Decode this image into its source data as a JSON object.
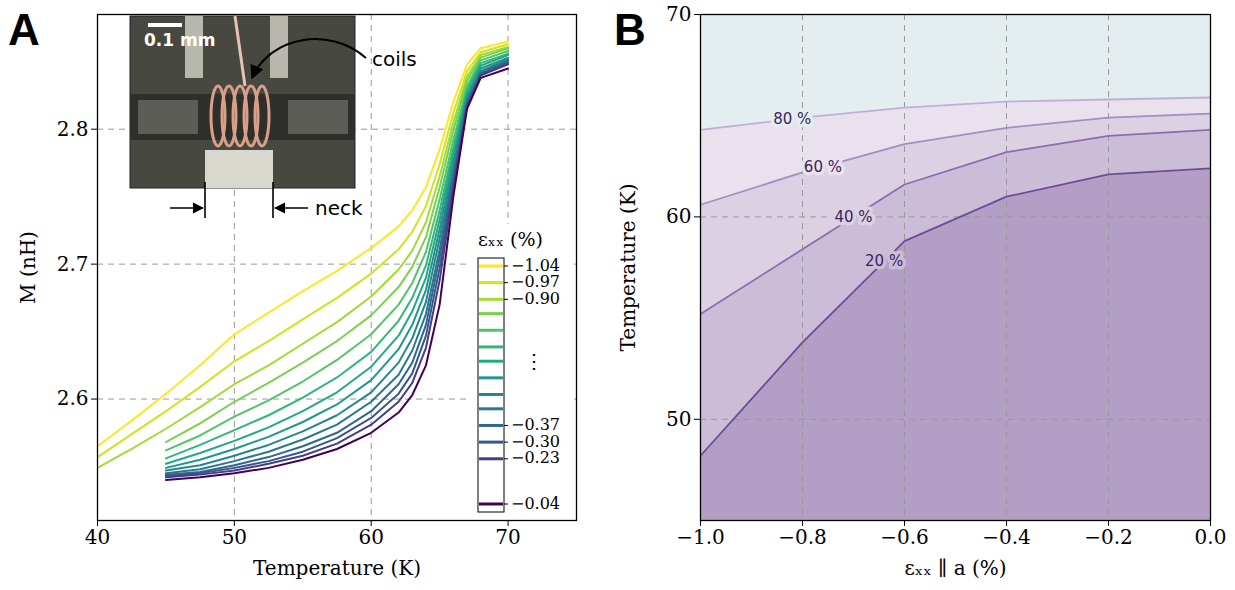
{
  "chart_data": [
    {
      "type": "line",
      "panel": "A",
      "x_label": "Temperature (K)",
      "y_label": "M (nH)",
      "xlim": [
        40,
        75
      ],
      "xticks": [
        40,
        50,
        60,
        70
      ],
      "ylim": [
        2.51,
        2.885
      ],
      "yticks": [
        2.6,
        2.7,
        2.8
      ],
      "grid": true,
      "x": [
        40,
        42.5,
        45,
        47.5,
        50,
        52.5,
        55,
        57.5,
        60,
        62,
        63,
        64,
        65,
        66,
        67,
        68,
        70
      ],
      "series": [
        {
          "strain": -1.04,
          "values": [
            2.565,
            2.584,
            2.604,
            2.625,
            2.648,
            2.664,
            2.68,
            2.695,
            2.712,
            2.728,
            2.74,
            2.757,
            2.785,
            2.82,
            2.848,
            2.86,
            2.865
          ]
        },
        {
          "strain": -0.97,
          "values": [
            2.557,
            2.574,
            2.591,
            2.609,
            2.628,
            2.643,
            2.659,
            2.675,
            2.693,
            2.711,
            2.724,
            2.743,
            2.774,
            2.812,
            2.843,
            2.857,
            2.863
          ]
        },
        {
          "strain": -0.9,
          "values": [
            2.549,
            2.563,
            2.578,
            2.594,
            2.611,
            2.625,
            2.641,
            2.657,
            2.676,
            2.696,
            2.71,
            2.731,
            2.765,
            2.805,
            2.839,
            2.855,
            2.861
          ]
        },
        {
          "strain": -0.84,
          "values": [
            null,
            null,
            2.568,
            2.582,
            2.598,
            2.612,
            2.627,
            2.643,
            2.662,
            2.683,
            2.698,
            2.72,
            2.757,
            2.799,
            2.836,
            2.853,
            2.86
          ]
        },
        {
          "strain": -0.77,
          "values": [
            null,
            null,
            2.562,
            2.573,
            2.587,
            2.599,
            2.613,
            2.629,
            2.648,
            2.67,
            2.686,
            2.709,
            2.748,
            2.792,
            2.832,
            2.851,
            2.858
          ]
        },
        {
          "strain": -0.7,
          "values": [
            null,
            null,
            2.556,
            2.566,
            2.577,
            2.588,
            2.601,
            2.616,
            2.635,
            2.658,
            2.675,
            2.699,
            2.74,
            2.786,
            2.829,
            2.849,
            2.856
          ]
        },
        {
          "strain": -0.64,
          "values": [
            null,
            null,
            2.552,
            2.56,
            2.569,
            2.579,
            2.591,
            2.605,
            2.624,
            2.647,
            2.665,
            2.69,
            2.733,
            2.781,
            2.826,
            2.847,
            2.855
          ]
        },
        {
          "strain": -0.57,
          "values": [
            null,
            null,
            2.549,
            2.555,
            2.563,
            2.572,
            2.583,
            2.596,
            2.614,
            2.637,
            2.655,
            2.681,
            2.726,
            2.776,
            2.824,
            2.845,
            2.853
          ]
        },
        {
          "strain": -0.5,
          "values": [
            null,
            null,
            2.547,
            2.551,
            2.558,
            2.566,
            2.576,
            2.588,
            2.605,
            2.627,
            2.645,
            2.672,
            2.719,
            2.771,
            2.822,
            2.843,
            2.852
          ]
        },
        {
          "strain": -0.44,
          "values": [
            null,
            null,
            2.545,
            2.548,
            2.554,
            2.561,
            2.57,
            2.581,
            2.598,
            2.618,
            2.636,
            2.663,
            2.711,
            2.767,
            2.82,
            2.842,
            2.851
          ]
        },
        {
          "strain": -0.37,
          "values": [
            null,
            null,
            2.544,
            2.546,
            2.551,
            2.557,
            2.565,
            2.575,
            2.591,
            2.611,
            2.627,
            2.655,
            2.705,
            2.763,
            2.819,
            2.841,
            2.85
          ]
        },
        {
          "strain": -0.3,
          "values": [
            null,
            null,
            2.543,
            2.545,
            2.549,
            2.554,
            2.561,
            2.571,
            2.586,
            2.604,
            2.619,
            2.647,
            2.697,
            2.759,
            2.818,
            2.84,
            2.849
          ]
        },
        {
          "strain": -0.23,
          "values": [
            null,
            null,
            2.542,
            2.544,
            2.547,
            2.552,
            2.558,
            2.567,
            2.581,
            2.598,
            2.612,
            2.638,
            2.688,
            2.756,
            2.817,
            2.84,
            2.848
          ]
        },
        {
          "strain": -0.04,
          "values": [
            null,
            null,
            2.54,
            2.542,
            2.545,
            2.549,
            2.555,
            2.563,
            2.575,
            2.59,
            2.603,
            2.625,
            2.67,
            2.75,
            2.815,
            2.838,
            2.845
          ]
        }
      ],
      "colorbar": {
        "label": "εₓₓ (%)",
        "range": [
          -1.04,
          -0.04
        ],
        "ellipsis": "⋮",
        "ticks": [
          {
            "value": -1.04,
            "label": "−1.04"
          },
          {
            "value": -0.97,
            "label": "−0.97"
          },
          {
            "value": -0.9,
            "label": "−0.90"
          },
          {
            "value": -0.37,
            "label": "−0.37"
          },
          {
            "value": -0.3,
            "label": "−0.30"
          },
          {
            "value": -0.23,
            "label": "−0.23"
          },
          {
            "value": -0.04,
            "label": "−0.04"
          }
        ]
      },
      "inset": {
        "scale_bar_label": "0.1 mm",
        "coils_label": "coils",
        "neck_label": "neck"
      }
    },
    {
      "type": "contour",
      "panel": "B",
      "x_label": "εₓₓ ∥ a (%)",
      "y_label": "Temperature (K)",
      "xlim": [
        -1.0,
        0.0
      ],
      "xticks": [
        {
          "value": -1.0,
          "label": "−1.0"
        },
        {
          "value": -0.8,
          "label": "−0.8"
        },
        {
          "value": -0.6,
          "label": "−0.6"
        },
        {
          "value": -0.4,
          "label": "−0.4"
        },
        {
          "value": -0.2,
          "label": "−0.2"
        },
        {
          "value": 0.0,
          "label": "0.0"
        }
      ],
      "ylim": [
        45,
        70
      ],
      "yticks": [
        50,
        60,
        70
      ],
      "grid": true,
      "x": [
        -1.0,
        -0.8,
        -0.6,
        -0.4,
        -0.2,
        0.0
      ],
      "series": [
        {
          "name": "20 %",
          "values": [
            48.2,
            53.8,
            58.8,
            61.0,
            62.1,
            62.4
          ]
        },
        {
          "name": "40 %",
          "values": [
            55.2,
            58.4,
            61.6,
            63.2,
            64.0,
            64.3
          ]
        },
        {
          "name": "60 %",
          "values": [
            60.6,
            62.2,
            63.6,
            64.4,
            64.9,
            65.1
          ]
        },
        {
          "name": "80 %",
          "values": [
            64.3,
            64.9,
            65.4,
            65.7,
            65.8,
            65.9
          ]
        }
      ]
    }
  ]
}
